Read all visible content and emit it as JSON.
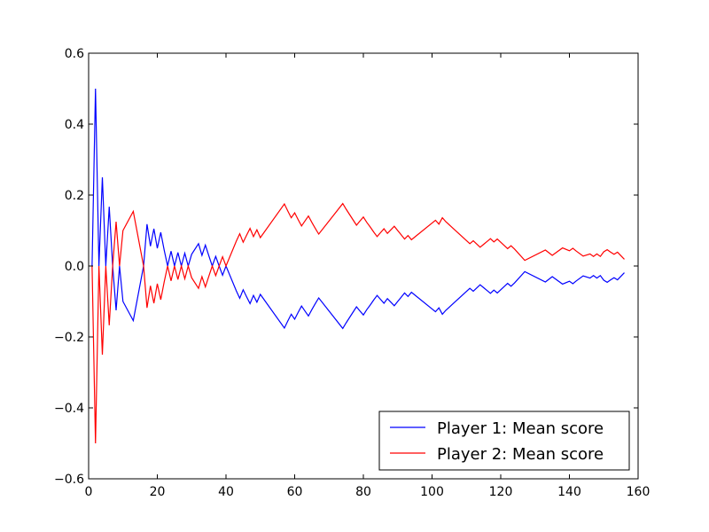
{
  "chart_data": {
    "type": "line",
    "title": "",
    "xlabel": "",
    "ylabel": "",
    "xlim": [
      0,
      160
    ],
    "ylim": [
      -0.6,
      0.6
    ],
    "xticks": [
      0,
      20,
      40,
      60,
      80,
      100,
      120,
      140,
      160
    ],
    "yticks": [
      -0.6,
      -0.4,
      -0.2,
      0.0,
      0.2,
      0.4,
      0.6
    ],
    "xtick_labels": [
      "0",
      "20",
      "40",
      "60",
      "80",
      "100",
      "120",
      "140",
      "160"
    ],
    "ytick_labels": [
      "−0.6",
      "−0.4",
      "−0.2",
      "0.0",
      "0.2",
      "0.4",
      "0.6"
    ],
    "grid": false,
    "legend_position": "lower-right",
    "series": [
      {
        "name": "Player 1: Mean score",
        "color": "#0000ff",
        "points": [
          [
            1,
            0.0
          ],
          [
            2,
            0.5
          ],
          [
            3,
            0.0
          ],
          [
            4,
            0.25
          ],
          [
            5,
            0.0
          ],
          [
            6,
            0.167
          ],
          [
            7,
            0.0
          ],
          [
            8,
            -0.125
          ],
          [
            9,
            0.0
          ],
          [
            10,
            -0.1
          ],
          [
            13,
            -0.154
          ],
          [
            16,
            0.0
          ],
          [
            17,
            0.118
          ],
          [
            18,
            0.056
          ],
          [
            19,
            0.105
          ],
          [
            20,
            0.05
          ],
          [
            21,
            0.095
          ],
          [
            22,
            0.045
          ],
          [
            23,
            0.0
          ],
          [
            24,
            0.042
          ],
          [
            25,
            0.0
          ],
          [
            26,
            0.038
          ],
          [
            27,
            0.0
          ],
          [
            28,
            0.036
          ],
          [
            29,
            0.0
          ],
          [
            30,
            0.033
          ],
          [
            32,
            0.063
          ],
          [
            33,
            0.03
          ],
          [
            34,
            0.059
          ],
          [
            35,
            0.029
          ],
          [
            36,
            0.0
          ],
          [
            37,
            0.027
          ],
          [
            38,
            0.0
          ],
          [
            39,
            -0.026
          ],
          [
            40,
            0.0
          ],
          [
            43,
            -0.07
          ],
          [
            44,
            -0.091
          ],
          [
            45,
            -0.067
          ],
          [
            46,
            -0.087
          ],
          [
            47,
            -0.106
          ],
          [
            48,
            -0.083
          ],
          [
            49,
            -0.102
          ],
          [
            50,
            -0.08
          ],
          [
            57,
            -0.175
          ],
          [
            58,
            -0.155
          ],
          [
            59,
            -0.136
          ],
          [
            60,
            -0.15
          ],
          [
            61,
            -0.131
          ],
          [
            62,
            -0.113
          ],
          [
            63,
            -0.127
          ],
          [
            64,
            -0.141
          ],
          [
            65,
            -0.123
          ],
          [
            66,
            -0.106
          ],
          [
            67,
            -0.09
          ],
          [
            74,
            -0.176
          ],
          [
            75,
            -0.16
          ],
          [
            76,
            -0.145
          ],
          [
            77,
            -0.13
          ],
          [
            78,
            -0.115
          ],
          [
            79,
            -0.127
          ],
          [
            80,
            -0.138
          ],
          [
            81,
            -0.123
          ],
          [
            82,
            -0.11
          ],
          [
            83,
            -0.096
          ],
          [
            84,
            -0.083
          ],
          [
            85,
            -0.094
          ],
          [
            86,
            -0.105
          ],
          [
            87,
            -0.092
          ],
          [
            88,
            -0.102
          ],
          [
            89,
            -0.112
          ],
          [
            90,
            -0.1
          ],
          [
            91,
            -0.088
          ],
          [
            92,
            -0.076
          ],
          [
            93,
            -0.086
          ],
          [
            94,
            -0.074
          ],
          [
            101,
            -0.129
          ],
          [
            102,
            -0.118
          ],
          [
            103,
            -0.136
          ],
          [
            104,
            -0.125
          ],
          [
            111,
            -0.063
          ],
          [
            112,
            -0.071
          ],
          [
            113,
            -0.062
          ],
          [
            114,
            -0.053
          ],
          [
            115,
            -0.061
          ],
          [
            116,
            -0.069
          ],
          [
            117,
            -0.077
          ],
          [
            118,
            -0.068
          ],
          [
            119,
            -0.076
          ],
          [
            120,
            -0.067
          ],
          [
            121,
            -0.058
          ],
          [
            122,
            -0.049
          ],
          [
            123,
            -0.057
          ],
          [
            124,
            -0.048
          ],
          [
            127,
            -0.016
          ],
          [
            133,
            -0.045
          ],
          [
            135,
            -0.03
          ],
          [
            138,
            -0.051
          ],
          [
            140,
            -0.043
          ],
          [
            141,
            -0.05
          ],
          [
            142,
            -0.042
          ],
          [
            144,
            -0.028
          ],
          [
            146,
            -0.034
          ],
          [
            147,
            -0.027
          ],
          [
            148,
            -0.034
          ],
          [
            149,
            -0.027
          ],
          [
            150,
            -0.04
          ],
          [
            151,
            -0.046
          ],
          [
            152,
            -0.039
          ],
          [
            153,
            -0.033
          ],
          [
            154,
            -0.039
          ],
          [
            156,
            -0.019
          ]
        ]
      },
      {
        "name": "Player 2: Mean score",
        "color": "#ff0000",
        "points": [
          [
            1,
            0.0
          ],
          [
            2,
            -0.5
          ],
          [
            3,
            0.0
          ],
          [
            4,
            -0.25
          ],
          [
            5,
            0.0
          ],
          [
            6,
            -0.167
          ],
          [
            7,
            0.0
          ],
          [
            8,
            0.125
          ],
          [
            9,
            0.0
          ],
          [
            10,
            0.1
          ],
          [
            13,
            0.154
          ],
          [
            16,
            0.0
          ],
          [
            17,
            -0.118
          ],
          [
            18,
            -0.056
          ],
          [
            19,
            -0.105
          ],
          [
            20,
            -0.05
          ],
          [
            21,
            -0.095
          ],
          [
            22,
            -0.045
          ],
          [
            23,
            0.0
          ],
          [
            24,
            -0.042
          ],
          [
            25,
            0.0
          ],
          [
            26,
            -0.038
          ],
          [
            27,
            0.0
          ],
          [
            28,
            -0.036
          ],
          [
            29,
            0.0
          ],
          [
            30,
            -0.033
          ],
          [
            32,
            -0.063
          ],
          [
            33,
            -0.03
          ],
          [
            34,
            -0.059
          ],
          [
            35,
            -0.029
          ],
          [
            36,
            0.0
          ],
          [
            37,
            -0.027
          ],
          [
            38,
            0.0
          ],
          [
            39,
            0.026
          ],
          [
            40,
            0.0
          ],
          [
            43,
            0.07
          ],
          [
            44,
            0.091
          ],
          [
            45,
            0.067
          ],
          [
            46,
            0.087
          ],
          [
            47,
            0.106
          ],
          [
            48,
            0.083
          ],
          [
            49,
            0.102
          ],
          [
            50,
            0.08
          ],
          [
            57,
            0.175
          ],
          [
            58,
            0.155
          ],
          [
            59,
            0.136
          ],
          [
            60,
            0.15
          ],
          [
            61,
            0.131
          ],
          [
            62,
            0.113
          ],
          [
            63,
            0.127
          ],
          [
            64,
            0.141
          ],
          [
            65,
            0.123
          ],
          [
            66,
            0.106
          ],
          [
            67,
            0.09
          ],
          [
            74,
            0.176
          ],
          [
            75,
            0.16
          ],
          [
            76,
            0.145
          ],
          [
            77,
            0.13
          ],
          [
            78,
            0.115
          ],
          [
            79,
            0.127
          ],
          [
            80,
            0.138
          ],
          [
            81,
            0.123
          ],
          [
            82,
            0.11
          ],
          [
            83,
            0.096
          ],
          [
            84,
            0.083
          ],
          [
            85,
            0.094
          ],
          [
            86,
            0.105
          ],
          [
            87,
            0.092
          ],
          [
            88,
            0.102
          ],
          [
            89,
            0.112
          ],
          [
            90,
            0.1
          ],
          [
            91,
            0.088
          ],
          [
            92,
            0.076
          ],
          [
            93,
            0.086
          ],
          [
            94,
            0.074
          ],
          [
            101,
            0.129
          ],
          [
            102,
            0.118
          ],
          [
            103,
            0.136
          ],
          [
            104,
            0.125
          ],
          [
            111,
            0.063
          ],
          [
            112,
            0.071
          ],
          [
            113,
            0.062
          ],
          [
            114,
            0.053
          ],
          [
            115,
            0.061
          ],
          [
            116,
            0.069
          ],
          [
            117,
            0.077
          ],
          [
            118,
            0.068
          ],
          [
            119,
            0.076
          ],
          [
            120,
            0.067
          ],
          [
            121,
            0.058
          ],
          [
            122,
            0.049
          ],
          [
            123,
            0.057
          ],
          [
            124,
            0.048
          ],
          [
            127,
            0.016
          ],
          [
            133,
            0.045
          ],
          [
            135,
            0.03
          ],
          [
            138,
            0.051
          ],
          [
            140,
            0.043
          ],
          [
            141,
            0.05
          ],
          [
            142,
            0.042
          ],
          [
            144,
            0.028
          ],
          [
            146,
            0.034
          ],
          [
            147,
            0.027
          ],
          [
            148,
            0.034
          ],
          [
            149,
            0.027
          ],
          [
            150,
            0.04
          ],
          [
            151,
            0.046
          ],
          [
            152,
            0.039
          ],
          [
            153,
            0.033
          ],
          [
            154,
            0.039
          ],
          [
            156,
            0.019
          ]
        ]
      }
    ]
  }
}
